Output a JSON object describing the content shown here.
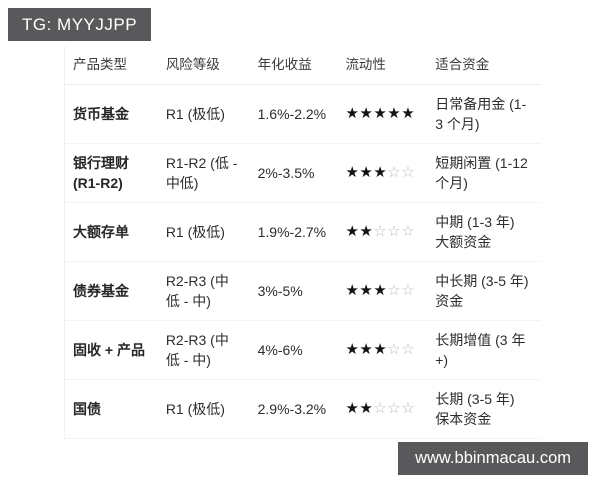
{
  "badges": {
    "top": "TG: MYYJJPP",
    "bottom": "www.bbinmacau.com"
  },
  "colors": {
    "badge_background": "#59595b",
    "badge_text": "#ffffff",
    "star_filled": "#131313",
    "star_empty": "#bcbcbc",
    "row_divider": "#f3f3f3"
  },
  "table": {
    "columns": {
      "product": "产品类型",
      "risk": "风险等级",
      "yield": "年化收益",
      "liquidity": "流动性",
      "funds": "适合资金"
    },
    "rows": [
      {
        "product": "货币基金",
        "risk": "R1 (极低)",
        "yield": "1.6%-2.2%",
        "liquidity_rating": 5,
        "stars_filled": "★★★★★",
        "stars_empty": "",
        "funds": "日常备用金 (1-3 个月)"
      },
      {
        "product": "银行理财 (R1-R2)",
        "risk": "R1-R2 (低 - 中低)",
        "yield": "2%-3.5%",
        "liquidity_rating": 3,
        "stars_filled": "★★★",
        "stars_empty": "☆☆",
        "funds": "短期闲置 (1-12 个月)"
      },
      {
        "product": "大额存单",
        "risk": "R1 (极低)",
        "yield": "1.9%-2.7%",
        "liquidity_rating": 2,
        "stars_filled": "★★",
        "stars_empty": "☆☆☆",
        "funds": "中期 (1-3 年) 大额资金"
      },
      {
        "product": "债券基金",
        "risk": "R2-R3 (中低 - 中)",
        "yield": "3%-5%",
        "liquidity_rating": 3,
        "stars_filled": "★★★",
        "stars_empty": "☆☆",
        "funds": "中长期 (3-5 年) 资金"
      },
      {
        "product": "固收 + 产品",
        "risk": "R2-R3 (中低 - 中)",
        "yield": "4%-6%",
        "liquidity_rating": 3,
        "stars_filled": "★★★",
        "stars_empty": "☆☆",
        "funds": "长期增值 (3 年 +)"
      },
      {
        "product": "国债",
        "risk": "R1 (极低)",
        "yield": "2.9%-3.2%",
        "liquidity_rating": 2,
        "stars_filled": "★★",
        "stars_empty": "☆☆☆",
        "funds": "长期 (3-5 年) 保本资金"
      }
    ]
  }
}
